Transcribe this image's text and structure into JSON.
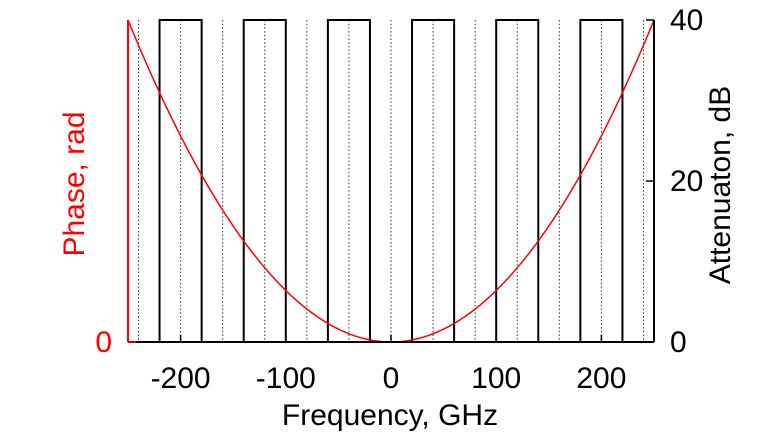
{
  "chart_data": {
    "type": "line",
    "xlabel": "Frequency, GHz",
    "ylabel_left": "Phase, rad",
    "ylabel_right": "Attenuaton, dB",
    "xlim": [
      -250,
      250
    ],
    "ylim_left": [
      0,
      1
    ],
    "ylim_right": [
      0,
      40
    ],
    "xticks": [
      -200,
      -100,
      0,
      100,
      200
    ],
    "yticks_left": [
      0
    ],
    "yticks_right": [
      0,
      20,
      40
    ],
    "colors": {
      "phase": "#ff0000",
      "attenuation": "#000000",
      "grid": "#000000"
    },
    "vertical_dotted_grid_x": [
      -240,
      -220,
      -200,
      -180,
      -160,
      -140,
      -120,
      -100,
      -80,
      -60,
      -40,
      -20,
      0,
      20,
      40,
      60,
      80,
      100,
      120,
      140,
      160,
      180,
      200,
      220,
      240
    ],
    "series": [
      {
        "kind": "step",
        "axis": "right",
        "values_dB": [
          [
            -250,
            0
          ],
          [
            -220,
            0
          ],
          [
            -220,
            40
          ],
          [
            -180,
            40
          ],
          [
            -180,
            0
          ],
          [
            -140,
            0
          ],
          [
            -140,
            40
          ],
          [
            -100,
            40
          ],
          [
            -100,
            0
          ],
          [
            -60,
            0
          ],
          [
            -60,
            40
          ],
          [
            -20,
            40
          ],
          [
            -20,
            0
          ],
          [
            20,
            0
          ],
          [
            20,
            40
          ],
          [
            60,
            40
          ],
          [
            60,
            0
          ],
          [
            100,
            0
          ],
          [
            100,
            40
          ],
          [
            140,
            40
          ],
          [
            140,
            0
          ],
          [
            180,
            0
          ],
          [
            180,
            40
          ],
          [
            220,
            40
          ],
          [
            220,
            0
          ],
          [
            250,
            0
          ]
        ]
      },
      {
        "kind": "quadratic",
        "axis": "left",
        "x_vertex": 0,
        "y_vertex": 0,
        "y_at_x_minus_250": 1.0
      }
    ]
  }
}
